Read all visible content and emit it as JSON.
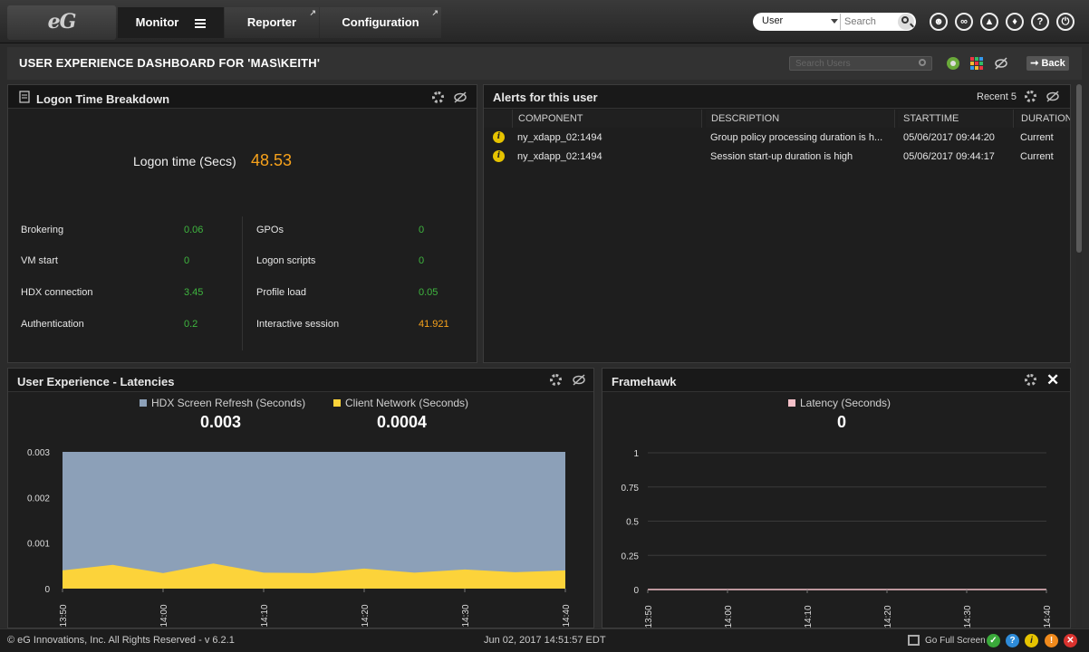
{
  "nav": {
    "logo": "eG",
    "monitor": "Monitor",
    "reporter": "Reporter",
    "configuration": "Configuration",
    "search_scope": "User",
    "search_placeholder": "Search"
  },
  "header": {
    "title": "USER EXPERIENCE DASHBOARD FOR 'MAS\\KEITH'",
    "search_users_placeholder": "Search Users",
    "back": "Back"
  },
  "logon_panel": {
    "title": "Logon Time Breakdown",
    "logon_label": "Logon time (Secs)",
    "logon_value": "48.53",
    "left_metrics": [
      {
        "label": "Brokering",
        "value": "0.06"
      },
      {
        "label": "VM start",
        "value": "0"
      },
      {
        "label": "HDX connection",
        "value": "3.45"
      },
      {
        "label": "Authentication",
        "value": "0.2"
      }
    ],
    "right_metrics": [
      {
        "label": "GPOs",
        "value": "0"
      },
      {
        "label": "Logon scripts",
        "value": "0"
      },
      {
        "label": "Profile load",
        "value": "0.05"
      },
      {
        "label": "Interactive session",
        "value": "41.921"
      }
    ]
  },
  "alerts_panel": {
    "title": "Alerts for this user",
    "recent": "Recent 5",
    "columns": [
      "COMPONENT",
      "DESCRIPTION",
      "STARTTIME",
      "DURATION"
    ],
    "rows": [
      {
        "component": "ny_xdapp_02:1494",
        "description": "Group policy processing duration is h...",
        "starttime": "05/06/2017 09:44:20",
        "duration": "Current"
      },
      {
        "component": "ny_xdapp_02:1494",
        "description": "Session start-up duration is high",
        "starttime": "05/06/2017 09:44:17",
        "duration": "Current"
      }
    ]
  },
  "latency_panel": {
    "title": "User Experience - Latencies",
    "legend": [
      {
        "label": "HDX Screen Refresh (Seconds)",
        "value": "0.003",
        "color": "#8ca0b8"
      },
      {
        "label": "Client Network (Seconds)",
        "value": "0.0004",
        "color": "#fcd33a"
      }
    ]
  },
  "framehawk_panel": {
    "title": "Framehawk",
    "legend": [
      {
        "label": "Latency (Seconds)",
        "value": "0",
        "color": "#f4c0c8"
      }
    ]
  },
  "chart_data": [
    {
      "type": "area",
      "x": [
        "13:50",
        "14:00",
        "14:10",
        "14:20",
        "14:30",
        "14:40"
      ],
      "ylim": [
        0,
        0.003
      ],
      "yticks": [
        "0",
        "0.001",
        "0.002",
        "0.003"
      ],
      "series": [
        {
          "name": "HDX Screen Refresh (Seconds)",
          "color": "#8ca0b8",
          "points": [
            [
              0,
              0.003
            ],
            [
              0.5,
              0.003
            ],
            [
              1,
              0.003
            ],
            [
              1.5,
              0.003
            ],
            [
              2,
              0.003
            ],
            [
              2.5,
              0.003
            ],
            [
              3,
              0.003
            ],
            [
              3.5,
              0.003
            ],
            [
              4,
              0.003
            ],
            [
              4.5,
              0.003
            ],
            [
              5,
              0.003
            ]
          ]
        },
        {
          "name": "Client Network (Seconds)",
          "color": "#fcd33a",
          "points": [
            [
              0,
              0.0004
            ],
            [
              0.5,
              0.00052
            ],
            [
              1,
              0.00034
            ],
            [
              1.5,
              0.00055
            ],
            [
              2,
              0.00035
            ],
            [
              2.5,
              0.00034
            ],
            [
              3,
              0.00044
            ],
            [
              3.5,
              0.00035
            ],
            [
              4,
              0.00042
            ],
            [
              4.5,
              0.00036
            ],
            [
              5,
              0.0004
            ]
          ]
        }
      ]
    },
    {
      "type": "line",
      "x": [
        "13:50",
        "14:00",
        "14:10",
        "14:20",
        "14:30",
        "14:40"
      ],
      "ylim": [
        0,
        1
      ],
      "yticks": [
        "0",
        "0.25",
        "0.5",
        "0.75",
        "1"
      ],
      "grid": true,
      "series": [
        {
          "name": "Latency (Seconds)",
          "color": "#f4c0c8",
          "values": [
            0,
            0,
            0,
            0,
            0,
            0
          ]
        }
      ]
    }
  ],
  "footer": {
    "copyright": "© eG Innovations, Inc. All Rights Reserved - v 6.2.1",
    "datetime": "Jun 02, 2017 14:51:57 EDT",
    "fullscreen": "Go Full Screen"
  }
}
